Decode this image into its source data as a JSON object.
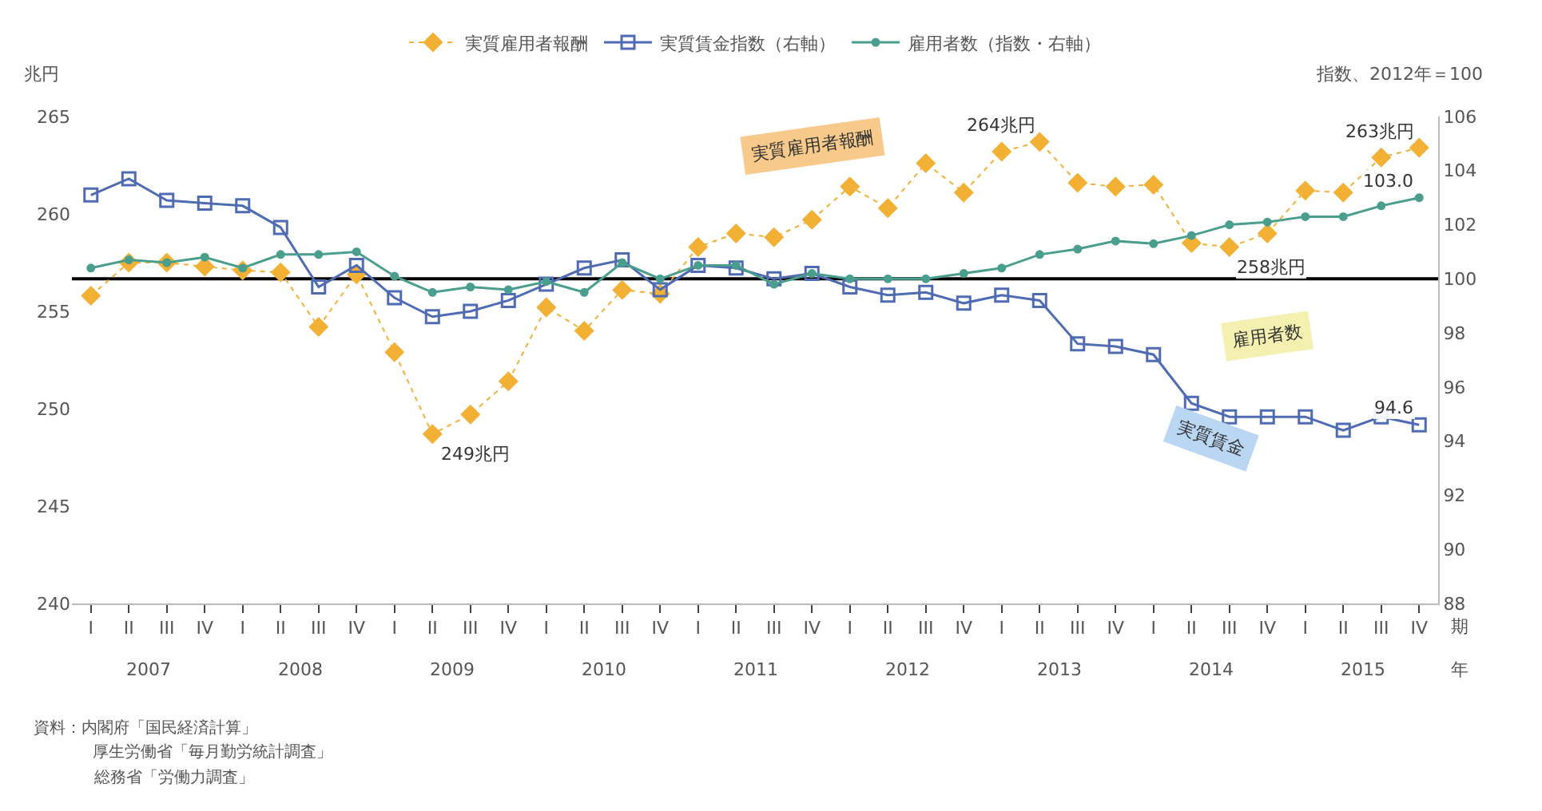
{
  "chart_data": {
    "type": "line",
    "categories": [
      "I",
      "II",
      "III",
      "IV",
      "I",
      "II",
      "III",
      "IV",
      "I",
      "II",
      "III",
      "IV",
      "I",
      "II",
      "III",
      "IV",
      "I",
      "II",
      "III",
      "IV",
      "I",
      "II",
      "III",
      "IV",
      "I",
      "II",
      "III",
      "IV",
      "I",
      "II",
      "III",
      "IV",
      "I",
      "II",
      "III",
      "IV"
    ],
    "xlabel": "期",
    "ylabel": "兆円",
    "y2label": "指数、2012年＝100",
    "ylim": [
      240,
      265
    ],
    "yticks": [
      240,
      245,
      250,
      255,
      260,
      265
    ],
    "y2lim": [
      88,
      106
    ],
    "y2ticks": [
      88,
      90,
      92,
      94,
      96,
      98,
      100,
      102,
      104,
      106
    ],
    "series": [
      {
        "name": "実質雇用者報酬",
        "color": "#f2b134",
        "marker": "diamond",
        "line_style": "dotted",
        "values": [
          255.8,
          257.5,
          257.5,
          257.3,
          257.1,
          257.0,
          254.2,
          256.9,
          252.9,
          248.7,
          249.7,
          251.4,
          255.2,
          254.0,
          256.1,
          255.9,
          258.3,
          259.0,
          258.8,
          259.7,
          261.4,
          260.3,
          262.6,
          261.1,
          263.2,
          263.7,
          261.6,
          261.4,
          261.5,
          258.5,
          258.3,
          259.0,
          261.2,
          261.1,
          262.9,
          263.4
        ],
        "value_labels": [
          null,
          null,
          null,
          null,
          null,
          null,
          null,
          null,
          null,
          "249兆円",
          null,
          null,
          null,
          null,
          null,
          null,
          null,
          null,
          null,
          null,
          null,
          null,
          null,
          null,
          null,
          "264兆円",
          null,
          null,
          null,
          null,
          "258兆円",
          null,
          null,
          null,
          null,
          "263兆円"
        ]
      },
      {
        "name": "実質賃金指数（右軸）",
        "color": "#4f6bb3",
        "marker": "square",
        "line_style": "solid",
        "axis": "y2",
        "values": [
          103.1,
          103.7,
          102.9,
          102.8,
          102.7,
          101.9,
          99.7,
          100.5,
          99.3,
          98.6,
          98.8,
          99.2,
          99.8,
          100.4,
          100.7,
          99.6,
          100.5,
          100.4,
          100.0,
          100.2,
          99.7,
          99.4,
          99.5,
          99.1,
          99.4,
          99.2,
          97.6,
          97.5,
          97.2,
          95.4,
          94.9,
          94.9,
          94.9,
          94.4,
          94.9,
          94.6
        ],
        "value_labels": [
          null,
          null,
          null,
          null,
          null,
          null,
          null,
          null,
          null,
          null,
          null,
          null,
          null,
          null,
          null,
          null,
          null,
          null,
          null,
          null,
          null,
          null,
          null,
          null,
          null,
          null,
          null,
          null,
          null,
          null,
          null,
          null,
          null,
          null,
          null,
          "94.6"
        ]
      },
      {
        "name": "雇用者数（指数・右軸）",
        "color": "#4a9e8e",
        "marker": "circle",
        "line_style": "solid",
        "axis": "y2",
        "values": [
          100.4,
          100.7,
          100.6,
          100.8,
          100.4,
          100.9,
          100.9,
          101.0,
          100.1,
          99.5,
          99.7,
          99.6,
          99.9,
          99.5,
          100.6,
          100.0,
          100.5,
          100.5,
          99.8,
          100.2,
          100.0,
          100.0,
          100.0,
          100.2,
          100.4,
          100.9,
          101.1,
          101.4,
          101.3,
          101.6,
          102.0,
          102.1,
          102.3,
          102.3,
          102.7,
          103.0
        ],
        "value_labels": [
          null,
          null,
          null,
          null,
          null,
          null,
          null,
          null,
          null,
          null,
          null,
          null,
          null,
          null,
          null,
          null,
          null,
          null,
          null,
          null,
          null,
          null,
          null,
          null,
          null,
          null,
          null,
          null,
          null,
          null,
          null,
          null,
          null,
          null,
          null,
          "103.0"
        ]
      }
    ],
    "ref_lines": [
      {
        "axis": "y2",
        "value": 100,
        "color": "#000000"
      }
    ],
    "annotations": [
      "2007",
      "2008",
      "2009",
      "2010",
      "2011",
      "2012",
      "2013",
      "2014",
      "2015",
      "年",
      "資料：内閣府「国民経済計算」",
      "厚生労働省「毎月勤労統計調査」",
      "総務省「労働力調査」",
      "実質雇用者報酬",
      "雇用者数",
      "実質賃金"
    ],
    "legend": "top",
    "grid": false
  }
}
